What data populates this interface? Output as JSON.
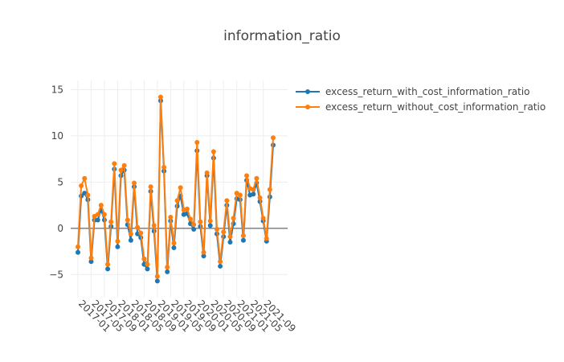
{
  "chart_data": {
    "type": "line",
    "title": "information_ratio",
    "xlabel": "",
    "ylabel": "",
    "ylim": [
      -7.5,
      16
    ],
    "yticks": [
      -5,
      0,
      5,
      10,
      15
    ],
    "x_tick_labels": [
      "2017-01",
      "2017-05",
      "2017-09",
      "2018-01",
      "2018-05",
      "2018-09",
      "2019-01",
      "2019-05",
      "2019-09",
      "2020-01",
      "2020-05",
      "2020-09",
      "2021-01",
      "2021-05",
      "2021-09"
    ],
    "n_points": 60,
    "series": [
      {
        "name": "excess_return_with_cost_information_ratio",
        "color": "#1f77b4",
        "values": [
          -2.6,
          3.5,
          3.8,
          3.1,
          -3.6,
          0.9,
          0.9,
          2.0,
          0.9,
          -4.4,
          0.2,
          6.4,
          -2.0,
          5.7,
          6.3,
          0.4,
          -1.3,
          4.5,
          -0.6,
          -1.0,
          -3.9,
          -4.4,
          4.0,
          -0.3,
          -5.7,
          13.8,
          6.2,
          -4.7,
          0.8,
          -2.1,
          2.4,
          3.5,
          1.5,
          1.6,
          0.5,
          -0.1,
          8.4,
          0.2,
          -3.0,
          5.7,
          0.3,
          7.6,
          -0.6,
          -4.1,
          -0.9,
          2.5,
          -1.5,
          0.5,
          3.2,
          3.1,
          -1.3,
          5.2,
          3.6,
          3.7,
          4.9,
          2.9,
          0.8,
          -1.4,
          3.4,
          9.0
        ]
      },
      {
        "name": "excess_return_without_cost_information_ratio",
        "color": "#ff7f0e",
        "values": [
          -2.0,
          4.6,
          5.4,
          3.6,
          -3.2,
          1.3,
          1.5,
          2.5,
          1.5,
          -3.9,
          0.7,
          7.0,
          -1.4,
          6.3,
          6.8,
          0.9,
          -0.6,
          4.9,
          0.1,
          -0.5,
          -3.3,
          -3.9,
          4.5,
          0.3,
          -5.2,
          14.2,
          6.6,
          -4.2,
          1.2,
          -1.6,
          3.0,
          4.4,
          2.0,
          2.1,
          1.0,
          0.4,
          9.3,
          0.7,
          -2.6,
          6.0,
          0.8,
          8.3,
          -0.1,
          -3.6,
          -0.4,
          3.0,
          -0.9,
          1.1,
          3.8,
          3.6,
          -0.8,
          5.7,
          4.3,
          4.2,
          5.4,
          3.3,
          1.1,
          -1.1,
          4.2,
          9.8
        ]
      }
    ],
    "legend": "top-right",
    "grid": true
  }
}
